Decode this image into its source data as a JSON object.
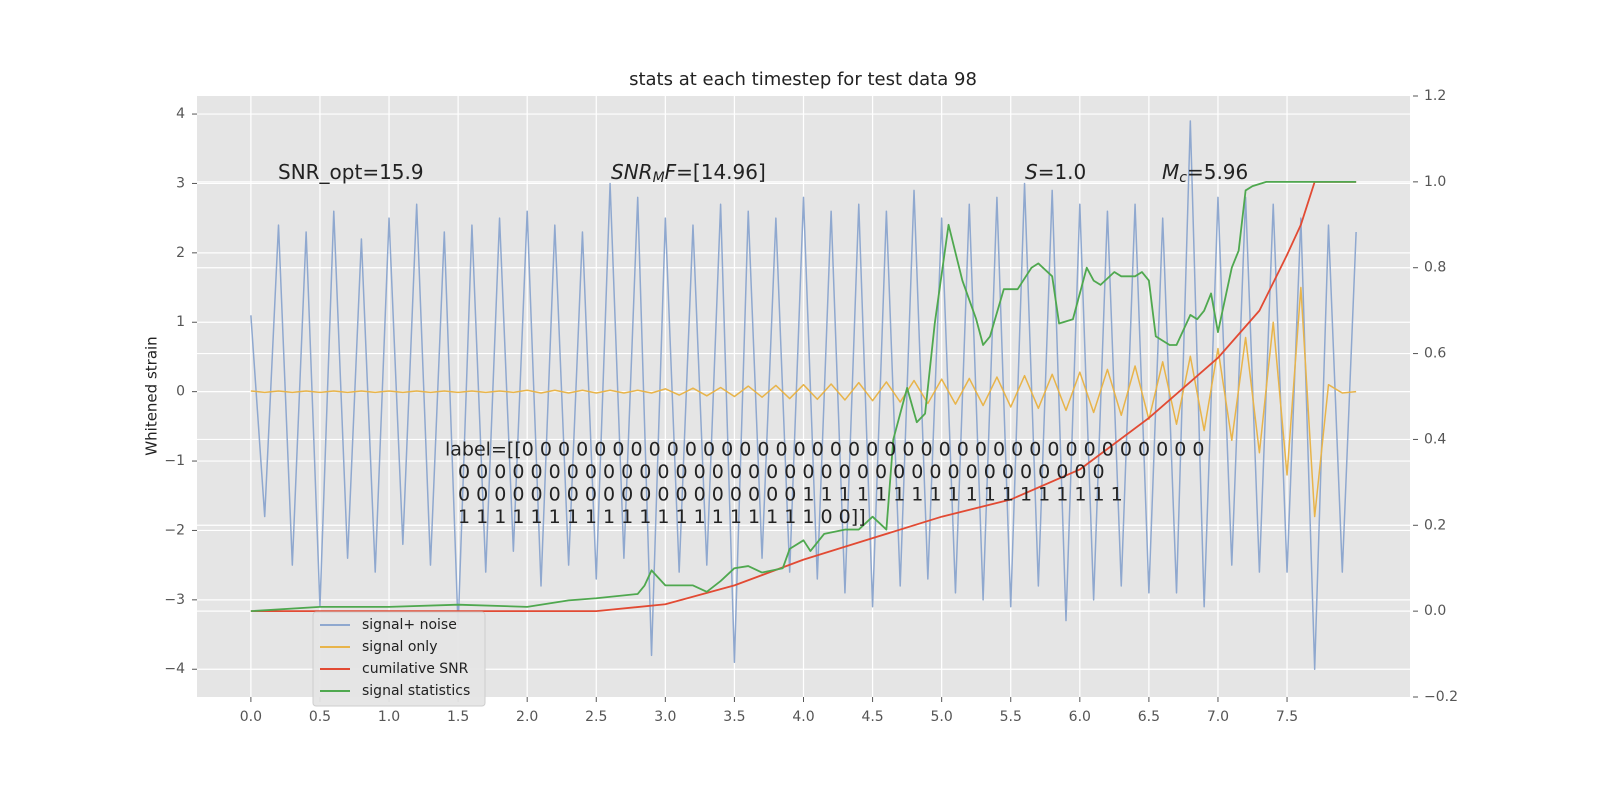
{
  "chart_data": {
    "type": "line",
    "title": "stats at each timestep for test data 98",
    "ylabel": "Whitened strain",
    "grid": true,
    "legend": "lower left",
    "xlim": [
      -0.39,
      8.39
    ],
    "ylim": [
      -4.4,
      4.26
    ],
    "y2lim": [
      -0.2,
      1.2
    ],
    "xticks": [
      {
        "value": 0,
        "label": "0.0"
      },
      {
        "value": 0.5,
        "label": "0.5"
      },
      {
        "value": 1,
        "label": "1.0"
      },
      {
        "value": 1.5,
        "label": "1.5"
      },
      {
        "value": 2,
        "label": "2.0"
      },
      {
        "value": 2.5,
        "label": "2.5"
      },
      {
        "value": 3,
        "label": "3.0"
      },
      {
        "value": 3.5,
        "label": "3.5"
      },
      {
        "value": 4,
        "label": "4.0"
      },
      {
        "value": 4.5,
        "label": "4.5"
      },
      {
        "value": 5,
        "label": "5.0"
      },
      {
        "value": 5.5,
        "label": "5.5"
      },
      {
        "value": 6,
        "label": "6.0"
      },
      {
        "value": 6.5,
        "label": "6.5"
      },
      {
        "value": 7,
        "label": "7.0"
      },
      {
        "value": 7.5,
        "label": "7.5"
      }
    ],
    "yticks": [
      {
        "value": -4,
        "label": "−4"
      },
      {
        "value": -3,
        "label": "−3"
      },
      {
        "value": -2,
        "label": "−2"
      },
      {
        "value": -1,
        "label": "−1"
      },
      0,
      1,
      2,
      3,
      4
    ],
    "y2ticks": [
      {
        "value": -0.2,
        "label": "−0.2"
      },
      {
        "value": 0,
        "label": "0.0"
      },
      {
        "value": 0.2,
        "label": "0.2"
      },
      {
        "value": 0.4,
        "label": "0.4"
      },
      {
        "value": 0.6,
        "label": "0.6"
      },
      {
        "value": 0.8,
        "label": "0.8"
      },
      {
        "value": 1,
        "label": "1.0"
      },
      {
        "value": 1.2,
        "label": "1.2"
      }
    ],
    "series": [
      {
        "name": "signal+ noise",
        "color": "#8fa8cf",
        "x": [
          0,
          0.1,
          0.2,
          0.3,
          0.4,
          0.5,
          0.6,
          0.7,
          0.8,
          0.9,
          1,
          1.1,
          1.2,
          1.3,
          1.4,
          1.5,
          1.6,
          1.7,
          1.8,
          1.9,
          2,
          2.1,
          2.2,
          2.3,
          2.4,
          2.5,
          2.6,
          2.7,
          2.8,
          2.9,
          3,
          3.1,
          3.2,
          3.3,
          3.4,
          3.5,
          3.6,
          3.7,
          3.8,
          3.9,
          4,
          4.1,
          4.2,
          4.3,
          4.4,
          4.5,
          4.6,
          4.7,
          4.8,
          4.9,
          5,
          5.1,
          5.2,
          5.3,
          5.4,
          5.5,
          5.6,
          5.7,
          5.8,
          5.9,
          6,
          6.1,
          6.2,
          6.3,
          6.4,
          6.5,
          6.6,
          6.7,
          6.8,
          6.9,
          7,
          7.1,
          7.2,
          7.3,
          7.4,
          7.5,
          7.6,
          7.7,
          7.8,
          7.9,
          8
        ],
        "values": [
          1.1,
          -1.8,
          2.4,
          -2.5,
          2.3,
          -3.1,
          2.6,
          -2.4,
          2.2,
          -2.6,
          2.5,
          -2.2,
          2.7,
          -2.5,
          2.3,
          -3.4,
          2.4,
          -2.6,
          2.5,
          -2.3,
          2.6,
          -2.8,
          2.4,
          -2.5,
          2.3,
          -2.7,
          3.0,
          -2.4,
          2.8,
          -3.8,
          2.5,
          -2.6,
          2.4,
          -2.5,
          2.7,
          -3.9,
          2.6,
          -2.4,
          2.5,
          -2.6,
          2.8,
          -2.7,
          2.6,
          -2.9,
          2.7,
          -3.1,
          2.6,
          -2.8,
          2.9,
          -2.7,
          2.5,
          -2.9,
          2.7,
          -3.0,
          2.8,
          -3.1,
          3.0,
          -2.8,
          2.9,
          -3.3,
          2.7,
          -3.0,
          2.6,
          -2.8,
          2.7,
          -2.9,
          2.5,
          -2.9,
          3.9,
          -3.1,
          2.8,
          -2.5,
          2.8,
          -2.6,
          2.7,
          -2.6,
          2.5,
          -4.0,
          2.4,
          -2.6,
          2.3
        ]
      },
      {
        "name": "signal only",
        "color": "#e8b44a",
        "x": [
          0,
          0.1,
          0.2,
          0.3,
          0.4,
          0.5,
          0.6,
          0.7,
          0.8,
          0.9,
          1,
          1.1,
          1.2,
          1.3,
          1.4,
          1.5,
          1.6,
          1.7,
          1.8,
          1.9,
          2,
          2.1,
          2.2,
          2.3,
          2.4,
          2.5,
          2.6,
          2.7,
          2.8,
          2.9,
          3,
          3.1,
          3.2,
          3.3,
          3.4,
          3.5,
          3.6,
          3.7,
          3.8,
          3.9,
          4,
          4.1,
          4.2,
          4.3,
          4.4,
          4.5,
          4.6,
          4.7,
          4.8,
          4.9,
          5,
          5.1,
          5.2,
          5.3,
          5.4,
          5.5,
          5.6,
          5.7,
          5.8,
          5.9,
          6,
          6.1,
          6.2,
          6.3,
          6.4,
          6.5,
          6.6,
          6.7,
          6.8,
          6.9,
          7,
          7.1,
          7.2,
          7.3,
          7.4,
          7.5,
          7.6,
          7.7,
          7.8,
          7.9,
          8
        ],
        "values": [
          0.01,
          -0.01,
          0.01,
          -0.01,
          0.01,
          -0.01,
          0.01,
          -0.01,
          0.01,
          -0.01,
          0.01,
          -0.01,
          0.01,
          -0.01,
          0.01,
          -0.01,
          0.01,
          -0.01,
          0.01,
          -0.01,
          0.02,
          -0.02,
          0.02,
          -0.02,
          0.02,
          -0.02,
          0.02,
          -0.02,
          0.02,
          -0.02,
          0.04,
          -0.05,
          0.05,
          -0.06,
          0.06,
          -0.07,
          0.08,
          -0.08,
          0.09,
          -0.1,
          0.1,
          -0.11,
          0.11,
          -0.12,
          0.13,
          -0.13,
          0.14,
          -0.15,
          0.16,
          -0.17,
          0.18,
          -0.18,
          0.19,
          -0.2,
          0.21,
          -0.22,
          0.23,
          -0.24,
          0.25,
          -0.27,
          0.28,
          -0.3,
          0.32,
          -0.34,
          0.37,
          -0.4,
          0.43,
          -0.47,
          0.51,
          -0.56,
          0.62,
          -0.7,
          0.78,
          -0.88,
          1.0,
          -1.2,
          1.5,
          -1.8,
          0.1,
          -0.02,
          0.0
        ]
      },
      {
        "name": "cumilative SNR",
        "color": "#e24a33",
        "axis": "y2",
        "x": [
          0,
          2.5,
          3,
          3.5,
          4,
          4.5,
          5,
          5.5,
          6,
          6.5,
          7,
          7.3,
          7.5,
          7.6,
          7.7,
          8
        ],
        "values": [
          0,
          0,
          0.016,
          0.06,
          0.12,
          0.17,
          0.22,
          0.26,
          0.33,
          0.45,
          0.59,
          0.7,
          0.83,
          0.9,
          1.0,
          1.0
        ]
      },
      {
        "name": "signal statistics",
        "color": "#4fa84f",
        "axis": "y2",
        "x": [
          0,
          0.5,
          0.7,
          1,
          1.5,
          2,
          2.3,
          2.5,
          2.8,
          2.85,
          2.9,
          3,
          3.2,
          3.3,
          3.4,
          3.5,
          3.6,
          3.7,
          3.85,
          3.9,
          4,
          4.05,
          4.15,
          4.3,
          4.4,
          4.5,
          4.6,
          4.65,
          4.75,
          4.82,
          4.88,
          4.95,
          5.05,
          5.15,
          5.25,
          5.3,
          5.35,
          5.45,
          5.55,
          5.65,
          5.7,
          5.8,
          5.85,
          5.95,
          6.05,
          6.1,
          6.15,
          6.25,
          6.3,
          6.4,
          6.45,
          6.5,
          6.55,
          6.65,
          6.7,
          6.8,
          6.85,
          6.9,
          6.95,
          7,
          7.1,
          7.15,
          7.2,
          7.25,
          7.35,
          8
        ],
        "values": [
          0,
          0.01,
          0.01,
          0.01,
          0.015,
          0.01,
          0.025,
          0.03,
          0.04,
          0.06,
          0.095,
          0.06,
          0.06,
          0.045,
          0.07,
          0.1,
          0.105,
          0.09,
          0.1,
          0.145,
          0.165,
          0.14,
          0.18,
          0.19,
          0.19,
          0.22,
          0.19,
          0.4,
          0.52,
          0.44,
          0.46,
          0.67,
          0.9,
          0.77,
          0.68,
          0.62,
          0.64,
          0.75,
          0.75,
          0.8,
          0.81,
          0.78,
          0.67,
          0.68,
          0.8,
          0.77,
          0.76,
          0.79,
          0.78,
          0.78,
          0.79,
          0.77,
          0.64,
          0.62,
          0.62,
          0.69,
          0.68,
          0.7,
          0.74,
          0.65,
          0.8,
          0.84,
          0.98,
          0.99,
          1.0,
          1.0
        ]
      }
    ],
    "annotations": [
      {
        "parts": [
          {
            "text": "SNR_opt=15.9"
          }
        ]
      },
      {
        "parts": [
          {
            "text": "SNR",
            "italic": true
          },
          {
            "text": "M",
            "italic": true,
            "sub": true
          },
          {
            "text": "F",
            "italic": true
          },
          {
            "text": "=[14.96]"
          }
        ]
      },
      {
        "parts": [
          {
            "text": "S",
            "italic": true
          },
          {
            "text": "=1.0"
          }
        ]
      },
      {
        "parts": [
          {
            "text": "M",
            "italic": true
          },
          {
            "text": "c",
            "italic": true,
            "sub": true
          },
          {
            "text": "=5.96"
          }
        ]
      }
    ],
    "label_text": [
      "label=[[0 0 0 0 0 0 0 0 0 0 0 0 0 0 0 0 0 0 0 0 0 0 0 0 0 0 0 0 0 0 0 0 0 0 0 0 0 0",
      "0 0 0 0 0 0 0 0 0 0 0 0 0 0 0 0 0 0 0 0 0 0 0 0 0 0 0 0 0 0 0 0 0 0 0 0",
      "0 0 0 0 0 0 0 0 0 0 0 0 0 0 0 0 0 0 0 1 1 1 1 1 1 1 1 1 1 1 1 1 1 1 1 1 1",
      "1 1 1 1 1 1 1 1 1 1 1 1 1 1 1 1 1 1 1 1 0 0]]"
    ]
  }
}
